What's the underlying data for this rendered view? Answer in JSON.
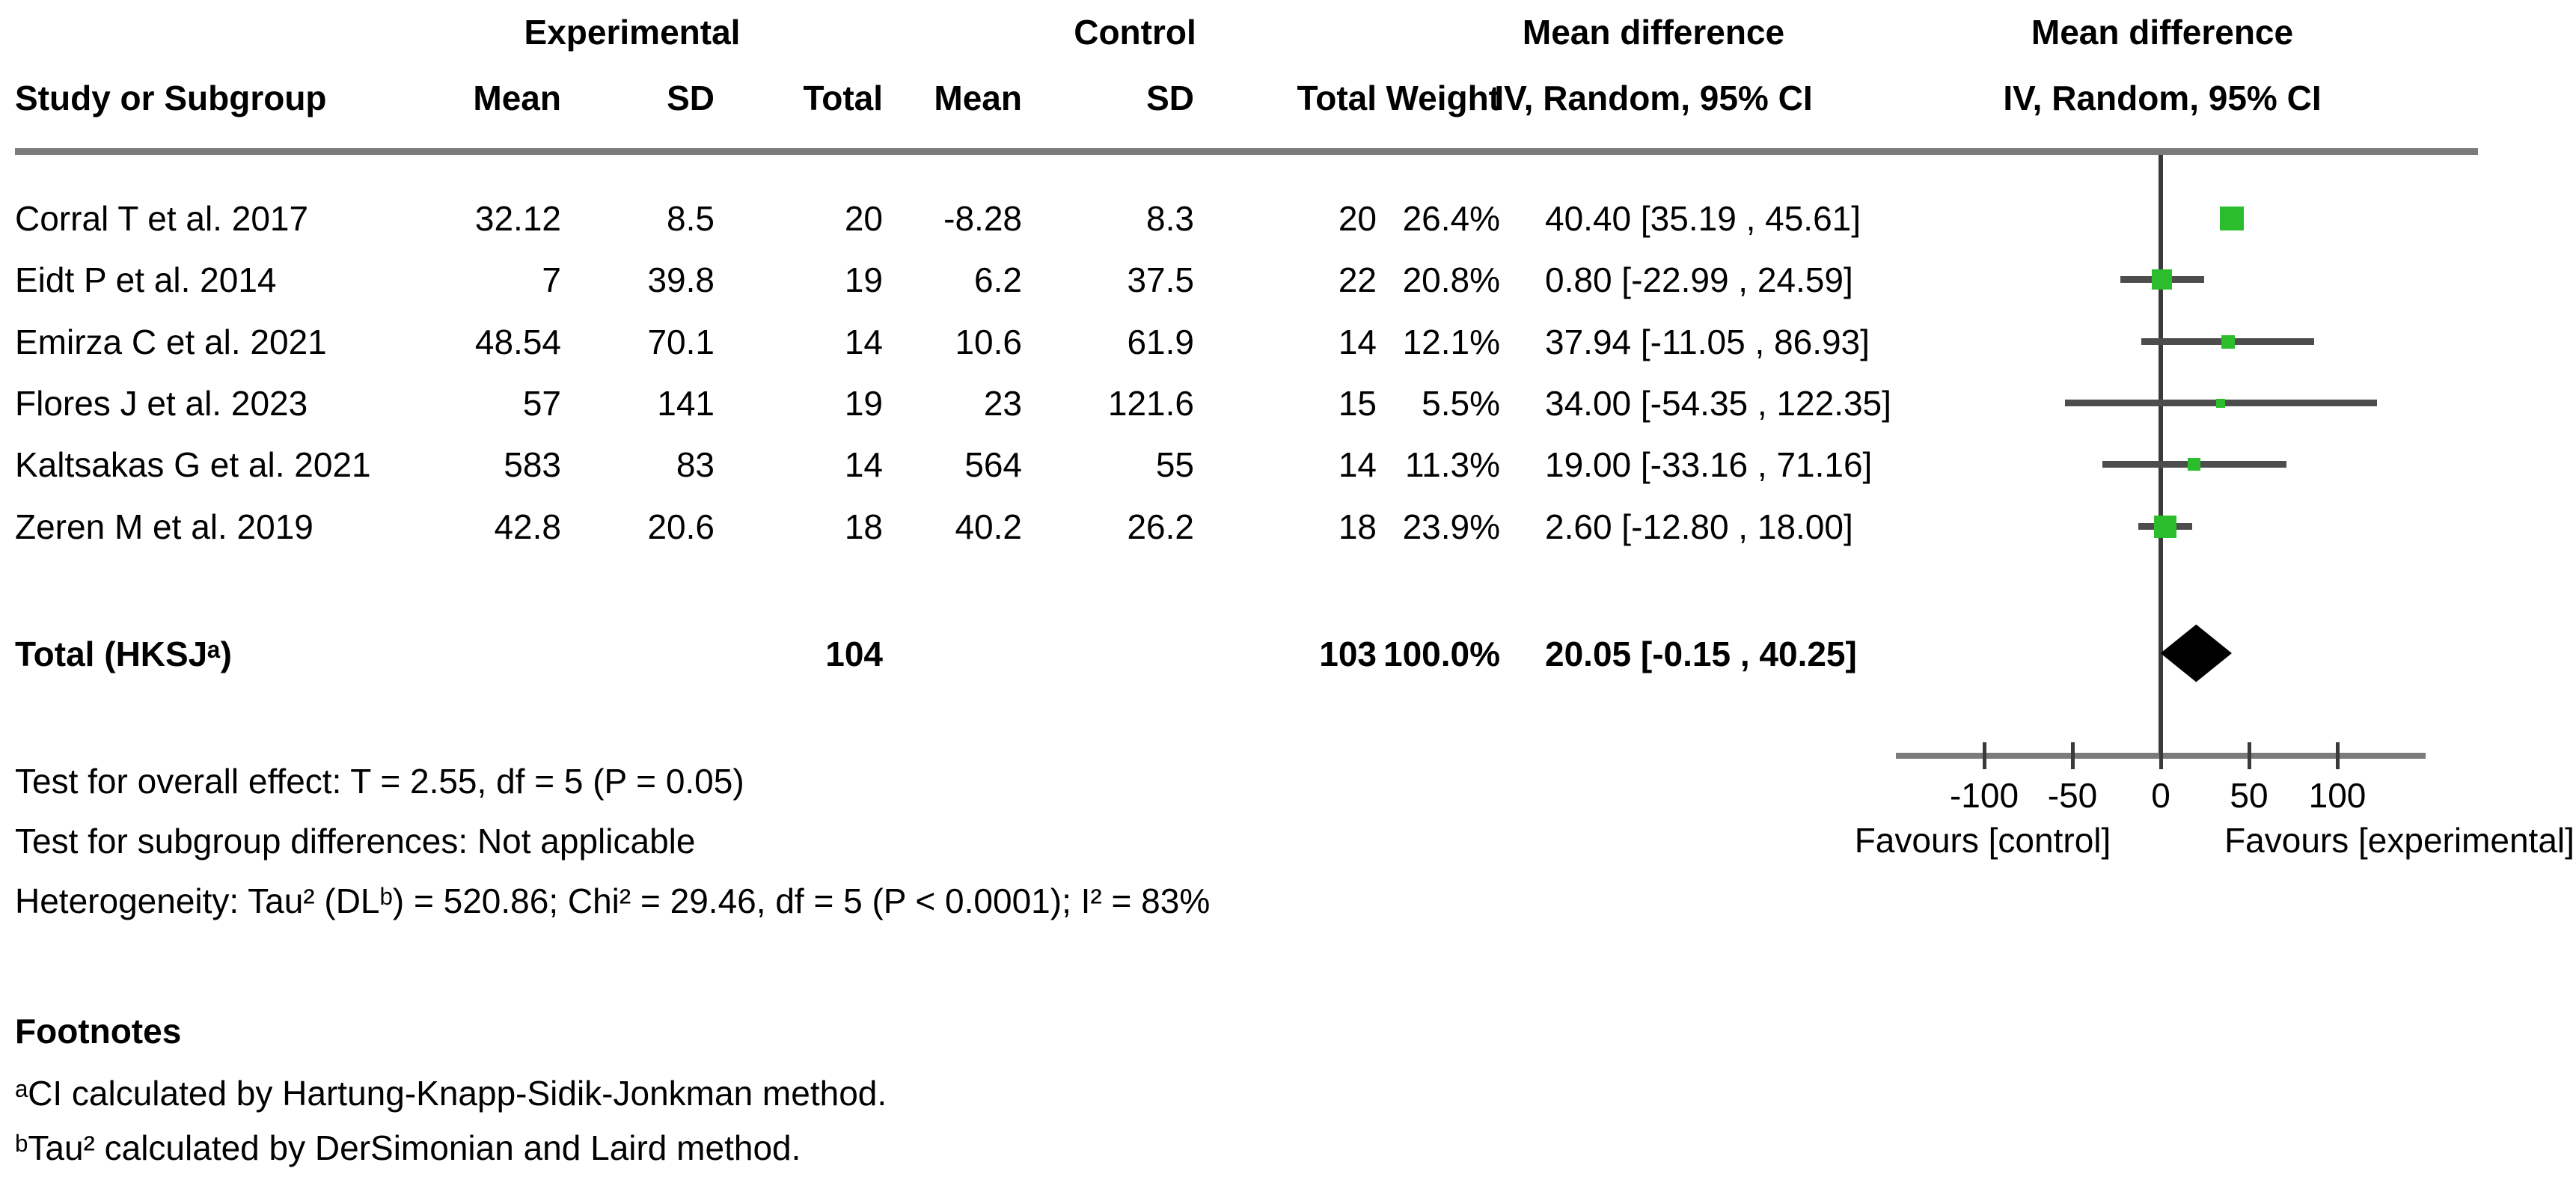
{
  "table": {
    "group_headers": {
      "experimental": "Experimental",
      "control": "Control",
      "md_text_col_line1": "Mean difference",
      "md_text_col_line2": "IV, Random, 95% CI",
      "md_plot_col_line1": "Mean difference",
      "md_plot_col_line2": "IV, Random, 95% CI"
    },
    "col_headers": {
      "study": "Study or Subgroup",
      "mean_e": "Mean",
      "sd_e": "SD",
      "total_e": "Total",
      "mean_c": "Mean",
      "sd_c": "SD",
      "total_c": "Total",
      "weight": "Weight"
    },
    "rows": [
      {
        "study": "Corral T et al. 2017",
        "mean_e": "32.12",
        "sd_e": "8.5",
        "total_e": "20",
        "mean_c": "-8.28",
        "sd_c": "8.3",
        "total_c": "20",
        "weight": "26.4%",
        "ci_text": "40.40 [35.19 , 45.61]"
      },
      {
        "study": "Eidt P et al. 2014",
        "mean_e": "7",
        "sd_e": "39.8",
        "total_e": "19",
        "mean_c": "6.2",
        "sd_c": "37.5",
        "total_c": "22",
        "weight": "20.8%",
        "ci_text": "0.80 [-22.99 , 24.59]"
      },
      {
        "study": "Emirza C et al. 2021",
        "mean_e": "48.54",
        "sd_e": "70.1",
        "total_e": "14",
        "mean_c": "10.6",
        "sd_c": "61.9",
        "total_c": "14",
        "weight": "12.1%",
        "ci_text": "37.94 [-11.05 , 86.93]"
      },
      {
        "study": "Flores J et al. 2023",
        "mean_e": "57",
        "sd_e": "141",
        "total_e": "19",
        "mean_c": "23",
        "sd_c": "121.6",
        "total_c": "15",
        "weight": "5.5%",
        "ci_text": "34.00 [-54.35 , 122.35]"
      },
      {
        "study": "Kaltsakas G et al. 2021",
        "mean_e": "583",
        "sd_e": "83",
        "total_e": "14",
        "mean_c": "564",
        "sd_c": "55",
        "total_c": "14",
        "weight": "11.3%",
        "ci_text": "19.00 [-33.16 , 71.16]"
      },
      {
        "study": "Zeren M et al. 2019",
        "mean_e": "42.8",
        "sd_e": "20.6",
        "total_e": "18",
        "mean_c": "40.2",
        "sd_c": "26.2",
        "total_c": "18",
        "weight": "23.9%",
        "ci_text": "2.60 [-12.80 , 18.00]"
      }
    ],
    "total_row": {
      "label": "Total (HKSJᵃ)",
      "total_e": "104",
      "total_c": "103",
      "weight": "100.0%",
      "ci_text": "20.05 [-0.15 , 40.25]"
    }
  },
  "stats": {
    "overall_effect": "Test for overall effect: T = 2.55, df = 5 (P = 0.05)",
    "subgroup": "Test for subgroup differences: Not applicable",
    "heterogeneity": "Heterogeneity: Tau² (DLᵇ) = 520.86; Chi² = 29.46, df = 5 (P < 0.0001); I² = 83%"
  },
  "footnotes": {
    "title": "Footnotes",
    "a": "ᵃCI calculated by Hartung-Knapp-Sidik-Jonkman method.",
    "b": "ᵇTau² calculated by DerSimonian and Laird method."
  },
  "chart_data": {
    "type": "forest",
    "title": "Mean difference, IV, Random, 95% CI",
    "x_axis": {
      "ticks": [
        -100,
        -50,
        0,
        50,
        100
      ],
      "range": [
        -150,
        150
      ],
      "zero_line": 0
    },
    "favours_left": "Favours [control]",
    "favours_right": "Favours [experimental]",
    "studies": [
      {
        "name": "Corral T et al. 2017",
        "md": 40.4,
        "ci_low": 35.19,
        "ci_high": 45.61,
        "weight_pct": 26.4
      },
      {
        "name": "Eidt P et al. 2014",
        "md": 0.8,
        "ci_low": -22.99,
        "ci_high": 24.59,
        "weight_pct": 20.8
      },
      {
        "name": "Emirza C et al. 2021",
        "md": 37.94,
        "ci_low": -11.05,
        "ci_high": 86.93,
        "weight_pct": 12.1
      },
      {
        "name": "Flores J et al. 2023",
        "md": 34.0,
        "ci_low": -54.35,
        "ci_high": 122.35,
        "weight_pct": 5.5
      },
      {
        "name": "Kaltsakas G et al. 2021",
        "md": 19.0,
        "ci_low": -33.16,
        "ci_high": 71.16,
        "weight_pct": 11.3
      },
      {
        "name": "Zeren M et al. 2019",
        "md": 2.6,
        "ci_low": -12.8,
        "ci_high": 18.0,
        "weight_pct": 23.9
      }
    ],
    "total": {
      "md": 20.05,
      "ci_low": -0.15,
      "ci_high": 40.25
    }
  },
  "colors": {
    "marker_green": "#2bbd2b",
    "ci_bar_gray": "#4d4d4d",
    "axis_gray": "#7b7b7b",
    "separator_gray": "#7b7b7b",
    "line_dark": "#3a3a3a",
    "diamond_black": "#000000"
  }
}
